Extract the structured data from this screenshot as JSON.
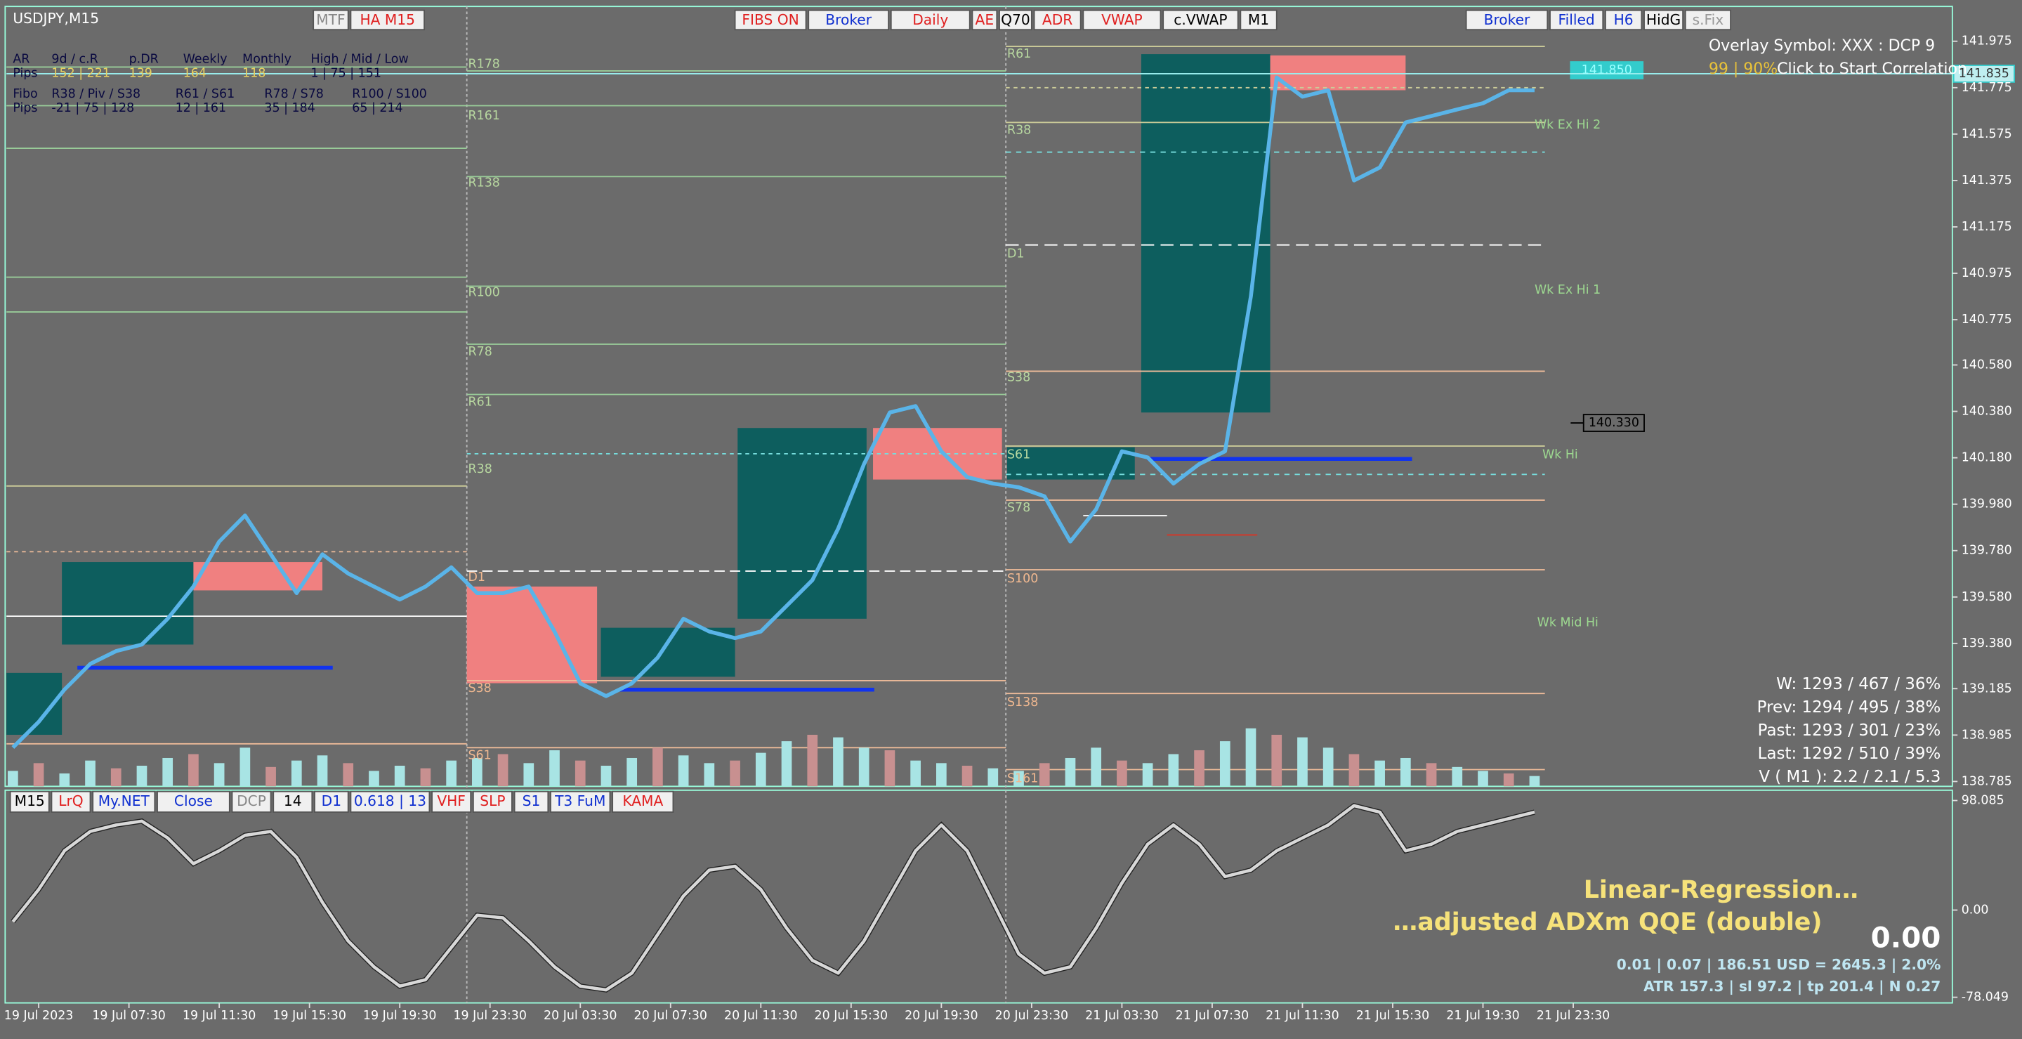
{
  "window_title": "USDJPY,M15",
  "top_buttons": [
    "MTF",
    "HA M15",
    "FIBS ON",
    "Broker",
    "Daily",
    "AE",
    "Q70",
    "ADR",
    "VWAP",
    "c.VWAP",
    "M1",
    "Broker",
    "Filled",
    "H6",
    "HidG",
    "s.Fix"
  ],
  "info_table": [
    [
      "AR",
      "9d / c.R",
      "p.DR",
      "Weekly",
      "Monthly",
      "High / Mid / Low"
    ],
    [
      "Pips",
      "152 | 221",
      "139",
      "164",
      "118",
      "1 | 75 | 151"
    ],
    [
      "Fibo",
      "R38 / Piv / S38",
      "R61 / S61",
      "R78 / S78",
      "R100 / S100"
    ],
    [
      "Pips",
      "-21 | 75 | 128",
      "12 | 161",
      "35 | 184",
      "65 | 214"
    ]
  ],
  "overlay": {
    "line1": "Overlay Symbol: XXX : DCP 9",
    "correlation": "99 | 90%",
    "action": "Click to Start Correlation"
  },
  "level_labels": [
    "R178",
    "R161",
    "R138",
    "R100",
    "R78",
    "R61",
    "R38",
    "D1",
    "S38",
    "S61",
    "R61",
    "R38",
    "D1",
    "S38",
    "S61",
    "S78",
    "S100",
    "S138",
    "S161"
  ],
  "zone_labels": [
    "Wk Ex Hi 2",
    "Wk Ex Hi 1",
    "Wk Hi",
    "Wk Mid Hi"
  ],
  "price_tags": [
    {
      "value": 141.85,
      "label": "141.850"
    },
    {
      "value": 141.835,
      "label": "141.835"
    },
    {
      "value": 140.33,
      "label": "140.330"
    }
  ],
  "stats": [
    "W: 1293 / 467 / 36%",
    "Prev: 1294 / 495 / 38%",
    "Past: 1293 / 301 / 23%",
    "Last: 1292 / 510 / 39%",
    "V ( M1 ): 2.2 / 2.1 / 5.3"
  ],
  "indicator_buttons": [
    "M15",
    "LrQ",
    "My.NET",
    "Close",
    "DCP",
    "14",
    "D1",
    "0.618 | 13",
    "VHF",
    "SLP",
    "S1",
    "T3 FuM",
    "KAMA"
  ],
  "indicator_title": [
    "Linear-Regression…",
    "…adjusted ADXm QQE (double)"
  ],
  "indicator_value": "0.00",
  "indicator_stats": [
    "0.01  |  0.07  |  186.51 USD = 2645.3  |  2.0%",
    "ATR 157.3  |  sl 97.2  |  tp 201.4  |  N 0.27"
  ],
  "time_labels": [
    "19 Jul 2023",
    "19 Jul 07:30",
    "19 Jul 11:30",
    "19 Jul 15:30",
    "19 Jul 19:30",
    "19 Jul 23:30",
    "20 Jul 03:30",
    "20 Jul 07:30",
    "20 Jul 11:30",
    "20 Jul 15:30",
    "20 Jul 19:30",
    "20 Jul 23:30",
    "21 Jul 03:30",
    "21 Jul 07:30",
    "21 Jul 11:30",
    "21 Jul 15:30",
    "21 Jul 19:30",
    "21 Jul 23:30"
  ],
  "chart_data": [
    {
      "type": "line",
      "color": "#5ab4e8",
      "values": [
        138.931,
        139.042,
        139.181,
        139.292,
        139.347,
        139.375,
        139.486,
        139.625,
        139.819,
        139.931,
        139.764,
        139.597,
        139.764,
        139.681,
        139.625,
        139.569,
        139.625,
        139.708,
        139.597,
        139.597,
        139.625,
        139.431,
        139.208,
        139.153,
        139.208,
        139.319,
        139.486,
        139.431,
        139.403,
        139.431,
        139.542,
        139.653,
        139.875,
        140.153,
        140.375,
        140.403,
        140.208,
        140.097,
        140.069,
        140.053,
        140.014,
        139.819,
        139.958,
        140.208,
        140.181,
        140.069,
        140.153,
        140.208,
        140.875,
        141.819,
        141.736,
        141.764,
        141.375,
        141.431,
        141.625,
        141.653,
        141.681,
        141.708,
        141.764,
        141.764
      ],
      "ylim": [
        138.764,
        142.125
      ],
      "yticks": [
        141.975,
        141.775,
        141.575,
        141.375,
        141.175,
        140.975,
        140.775,
        {
          "value": 140.58,
          "label": "140.580"
        },
        {
          "value": 140.38,
          "label": "140.380"
        },
        {
          "value": 140.18,
          "label": "140.180"
        },
        {
          "value": 139.98,
          "label": "139.980"
        },
        {
          "value": 139.78,
          "label": "139.780"
        },
        {
          "value": 139.58,
          "label": "139.580"
        },
        {
          "value": 139.38,
          "label": "139.380"
        },
        139.185,
        138.985,
        138.785
      ]
    },
    {
      "type": "bar",
      "color": "#a8e4e4",
      "values": [
        12,
        18,
        10,
        20,
        14,
        16,
        22,
        25,
        18,
        30,
        15,
        20,
        24,
        18,
        12,
        16,
        14,
        20,
        22,
        25,
        18,
        28,
        20,
        16,
        22,
        30,
        24,
        18,
        20,
        26,
        35,
        40,
        38,
        30,
        28,
        20,
        18,
        16,
        14,
        12,
        18,
        22,
        30,
        20,
        18,
        25,
        28,
        35,
        45,
        40,
        38,
        30,
        25,
        20,
        22,
        18,
        15,
        12,
        10,
        8
      ]
    },
    {
      "type": "line",
      "color": "#d8d8d8",
      "values": [
        -10.4,
        18.5,
        53.1,
        70.4,
        76.2,
        79.6,
        64.6,
        41.5,
        53.1,
        66.9,
        70.4,
        47.3,
        6.9,
        -27.7,
        -50.8,
        -68.1,
        -62.3,
        -33.5,
        -4.6,
        -6.9,
        -27.7,
        -50.8,
        -68.1,
        -71.5,
        -56.5,
        -21.9,
        12.7,
        35.8,
        39.2,
        18.5,
        -16.2,
        -45.0,
        -56.5,
        -27.7,
        12.7,
        53.1,
        76.2,
        53.1,
        6.9,
        -39.2,
        -56.5,
        -50.8,
        -16.2,
        24.2,
        58.9,
        76.2,
        58.9,
        30.0,
        35.8,
        53.1,
        64.6,
        76.2,
        93.5,
        87.7,
        53.1,
        58.9,
        70.4,
        76.2,
        81.9,
        87.7
      ],
      "ylim": [
        -83.1,
        105.0
      ],
      "yticks": [
        98.085,
        {
          "value": 0,
          "label": "0.00"
        },
        -78.049
      ]
    }
  ]
}
